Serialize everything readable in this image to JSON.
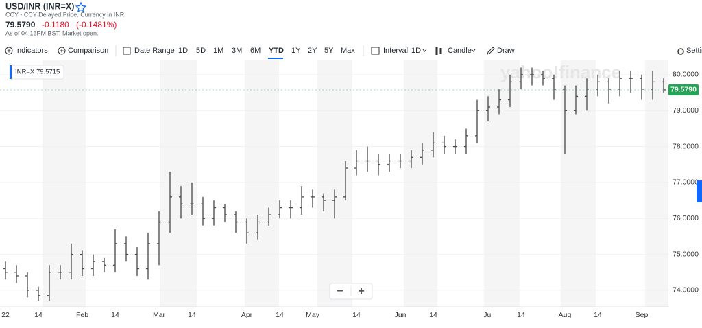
{
  "header": {
    "title": "USD/INR (INR=X)",
    "subtitle": "CCY - CCY Delayed Price. Currency in INR",
    "price": "79.5790",
    "change": "-0.1180",
    "change_percent": "(-0.1481%)",
    "as_of": "As of 04:16PM BST. Market open."
  },
  "toolbar": {
    "indicators": "Indicators",
    "comparison": "Comparison",
    "date_range": "Date Range",
    "ranges": [
      "1D",
      "5D",
      "1M",
      "3M",
      "6M",
      "YTD",
      "1Y",
      "2Y",
      "5Y",
      "Max"
    ],
    "selected_range": "YTD",
    "interval": "Interval",
    "interval_value": "1D",
    "chart_style": "Candle",
    "draw": "Draw",
    "settings": "Settings"
  },
  "chart_data": {
    "type": "ohlc",
    "watermark": "yahoo!finance",
    "tooltip": {
      "symbol": "INR=X",
      "value": "79.5715"
    },
    "zoom": [
      "−",
      "+"
    ],
    "categories": [
      "22",
      null,
      null,
      "14",
      null,
      null,
      null,
      "Feb",
      null,
      null,
      "14",
      null,
      null,
      null,
      "Mar",
      null,
      null,
      "14",
      null,
      null,
      null,
      null,
      "Apr",
      null,
      null,
      "14",
      null,
      null,
      "May",
      null,
      null,
      null,
      "14",
      null,
      null,
      null,
      "Jun",
      null,
      null,
      "14",
      null,
      null,
      null,
      null,
      "Jul",
      null,
      null,
      "14",
      null,
      null,
      null,
      "Aug",
      null,
      null,
      "14",
      null,
      null,
      null,
      "Sep",
      null,
      null
    ],
    "open": [
      74.6,
      74.5,
      74.4,
      74.0,
      73.85,
      74.5,
      74.5,
      75.0,
      74.6,
      74.8,
      74.7,
      75.3,
      75.0,
      74.6,
      75.3,
      75.9,
      76.6,
      76.4,
      76.4,
      76.0,
      76.3,
      76.1,
      75.9,
      75.6,
      75.9,
      76.1,
      76.3,
      76.3,
      76.6,
      76.6,
      76.5,
      76.6,
      77.4,
      77.6,
      77.6,
      77.5,
      77.6,
      77.6,
      77.7,
      77.9,
      78.1,
      78.0,
      78.0,
      78.3,
      79.0,
      79.1,
      79.3,
      79.8,
      80.0,
      80.0,
      79.9,
      79.6,
      79.0,
      79.4,
      79.6,
      79.8,
      79.6,
      79.9,
      79.9,
      79.6,
      79.8
    ],
    "high": [
      74.8,
      74.7,
      74.5,
      74.1,
      74.7,
      74.7,
      75.3,
      75.1,
      75.0,
      74.9,
      75.7,
      75.5,
      75.2,
      75.6,
      76.2,
      77.3,
      76.9,
      77.0,
      76.6,
      76.5,
      76.4,
      76.2,
      76.0,
      76.1,
      76.3,
      76.5,
      76.5,
      76.9,
      76.8,
      76.7,
      76.8,
      77.6,
      77.9,
      78.0,
      77.8,
      77.8,
      77.8,
      77.9,
      78.1,
      78.4,
      78.3,
      78.2,
      78.5,
      79.3,
      79.4,
      79.6,
      80.0,
      80.2,
      80.2,
      80.1,
      80.0,
      79.7,
      79.7,
      79.9,
      80.0,
      79.9,
      80.1,
      80.1,
      80.0,
      80.1,
      79.9
    ],
    "low": [
      74.3,
      74.2,
      73.8,
      73.7,
      73.7,
      74.3,
      74.3,
      74.4,
      74.4,
      74.5,
      74.5,
      74.8,
      74.4,
      74.3,
      74.7,
      75.6,
      76.0,
      76.1,
      75.8,
      75.8,
      75.9,
      75.6,
      75.3,
      75.4,
      75.8,
      76.0,
      76.0,
      76.1,
      76.3,
      76.2,
      76.0,
      76.5,
      77.2,
      77.3,
      77.2,
      77.3,
      77.4,
      77.4,
      77.5,
      77.7,
      77.8,
      77.8,
      77.8,
      78.1,
      78.7,
      78.9,
      79.1,
      79.6,
      79.7,
      79.7,
      79.3,
      77.8,
      78.9,
      79.0,
      79.4,
      79.2,
      79.4,
      79.5,
      79.3,
      79.3,
      79.5
    ],
    "close": [
      74.5,
      74.4,
      74.0,
      73.85,
      74.5,
      74.5,
      75.0,
      74.6,
      74.8,
      74.7,
      75.3,
      75.0,
      74.6,
      75.3,
      75.9,
      76.6,
      76.4,
      76.4,
      76.0,
      76.3,
      76.1,
      75.9,
      75.6,
      75.9,
      76.1,
      76.3,
      76.3,
      76.6,
      76.6,
      76.5,
      76.6,
      77.4,
      77.6,
      77.6,
      77.5,
      77.6,
      77.6,
      77.7,
      77.9,
      78.1,
      78.0,
      78.0,
      78.3,
      79.0,
      79.1,
      79.3,
      79.8,
      80.0,
      80.0,
      79.9,
      79.6,
      79.0,
      79.4,
      79.6,
      79.8,
      79.6,
      79.9,
      79.9,
      79.6,
      79.8,
      79.579
    ],
    "color": "#464646",
    "last_price": {
      "value": 79.579,
      "label": "79.5790"
    },
    "last_price_color": "#21a453",
    "ylim": [
      73.54,
      80.4
    ],
    "yticks": [
      {
        "value": 74,
        "label": "74.0000"
      },
      {
        "value": 75,
        "label": "75.0000"
      },
      {
        "value": 76,
        "label": "76.0000"
      },
      {
        "value": 77,
        "label": "77.0000"
      },
      {
        "value": 78,
        "label": "78.0000"
      },
      {
        "value": 79,
        "label": "79.0000"
      },
      {
        "value": 80,
        "label": "80.0000"
      }
    ],
    "grid": true
  }
}
